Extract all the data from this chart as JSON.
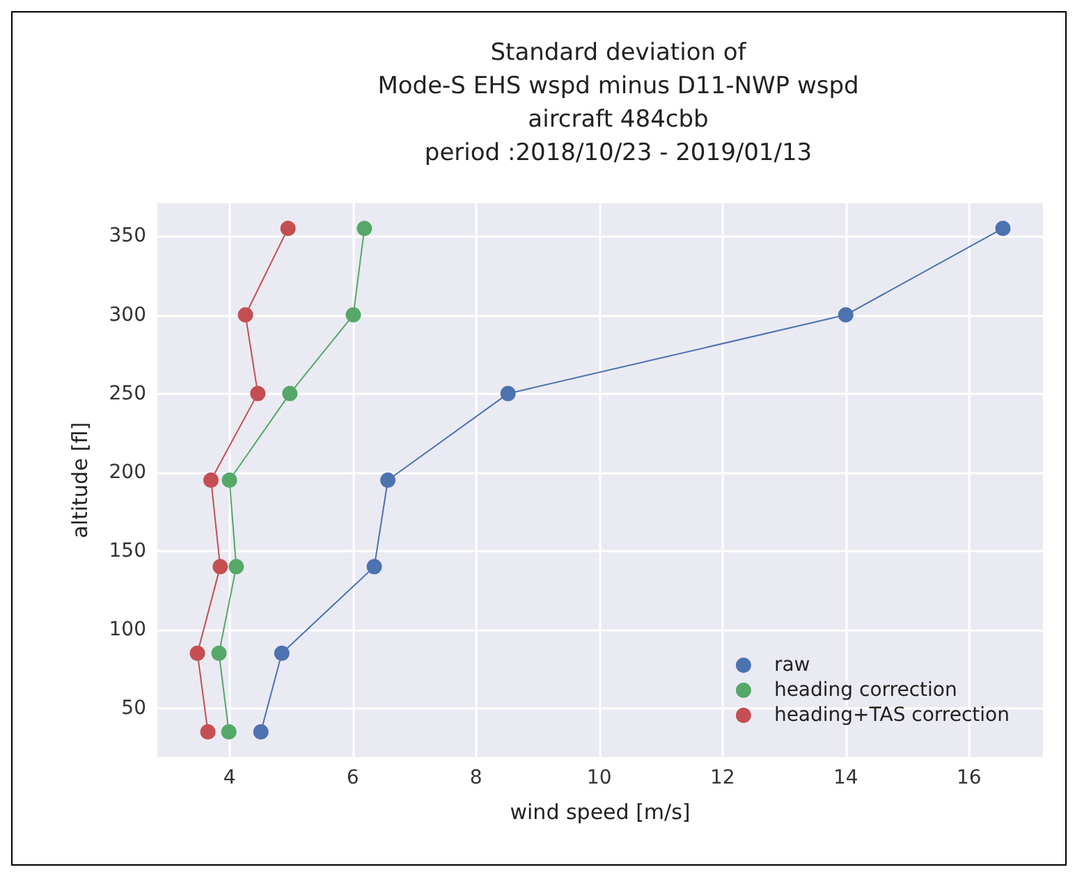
{
  "chart_data": {
    "type": "line",
    "title": "Standard deviation of\nMode-S EHS wspd minus D11-NWP wspd\naircraft 484cbb\nperiod :2018/10/23 - 2019/01/13",
    "xlabel": "wind speed [m/s]",
    "ylabel": "altitude [fl]",
    "xlim": [
      2.83,
      17.2
    ],
    "xticks": [
      4,
      6,
      8,
      10,
      12,
      14,
      16
    ],
    "ylim": [
      19,
      371
    ],
    "yticks": [
      50,
      100,
      150,
      200,
      250,
      300,
      350
    ],
    "grid": true,
    "legend": "bottom right",
    "marker": "circle",
    "line_style": "solid",
    "series": [
      {
        "name": "raw",
        "color": "#4c72b0",
        "x": [
          4.51,
          4.85,
          6.35,
          6.57,
          8.52,
          14.0,
          16.55
        ],
        "values": [
          35,
          85,
          140,
          195,
          250,
          300,
          355
        ]
      },
      {
        "name": "heading correction",
        "color": "#55a868",
        "x": [
          3.99,
          3.83,
          4.11,
          4.0,
          4.98,
          6.01,
          6.19
        ],
        "values": [
          35,
          85,
          140,
          195,
          250,
          300,
          355
        ]
      },
      {
        "name": "heading+TAS correction",
        "color": "#c44e52",
        "x": [
          3.65,
          3.48,
          3.85,
          3.7,
          4.46,
          4.26,
          4.95
        ],
        "values": [
          35,
          85,
          140,
          195,
          250,
          300,
          355
        ]
      }
    ]
  }
}
